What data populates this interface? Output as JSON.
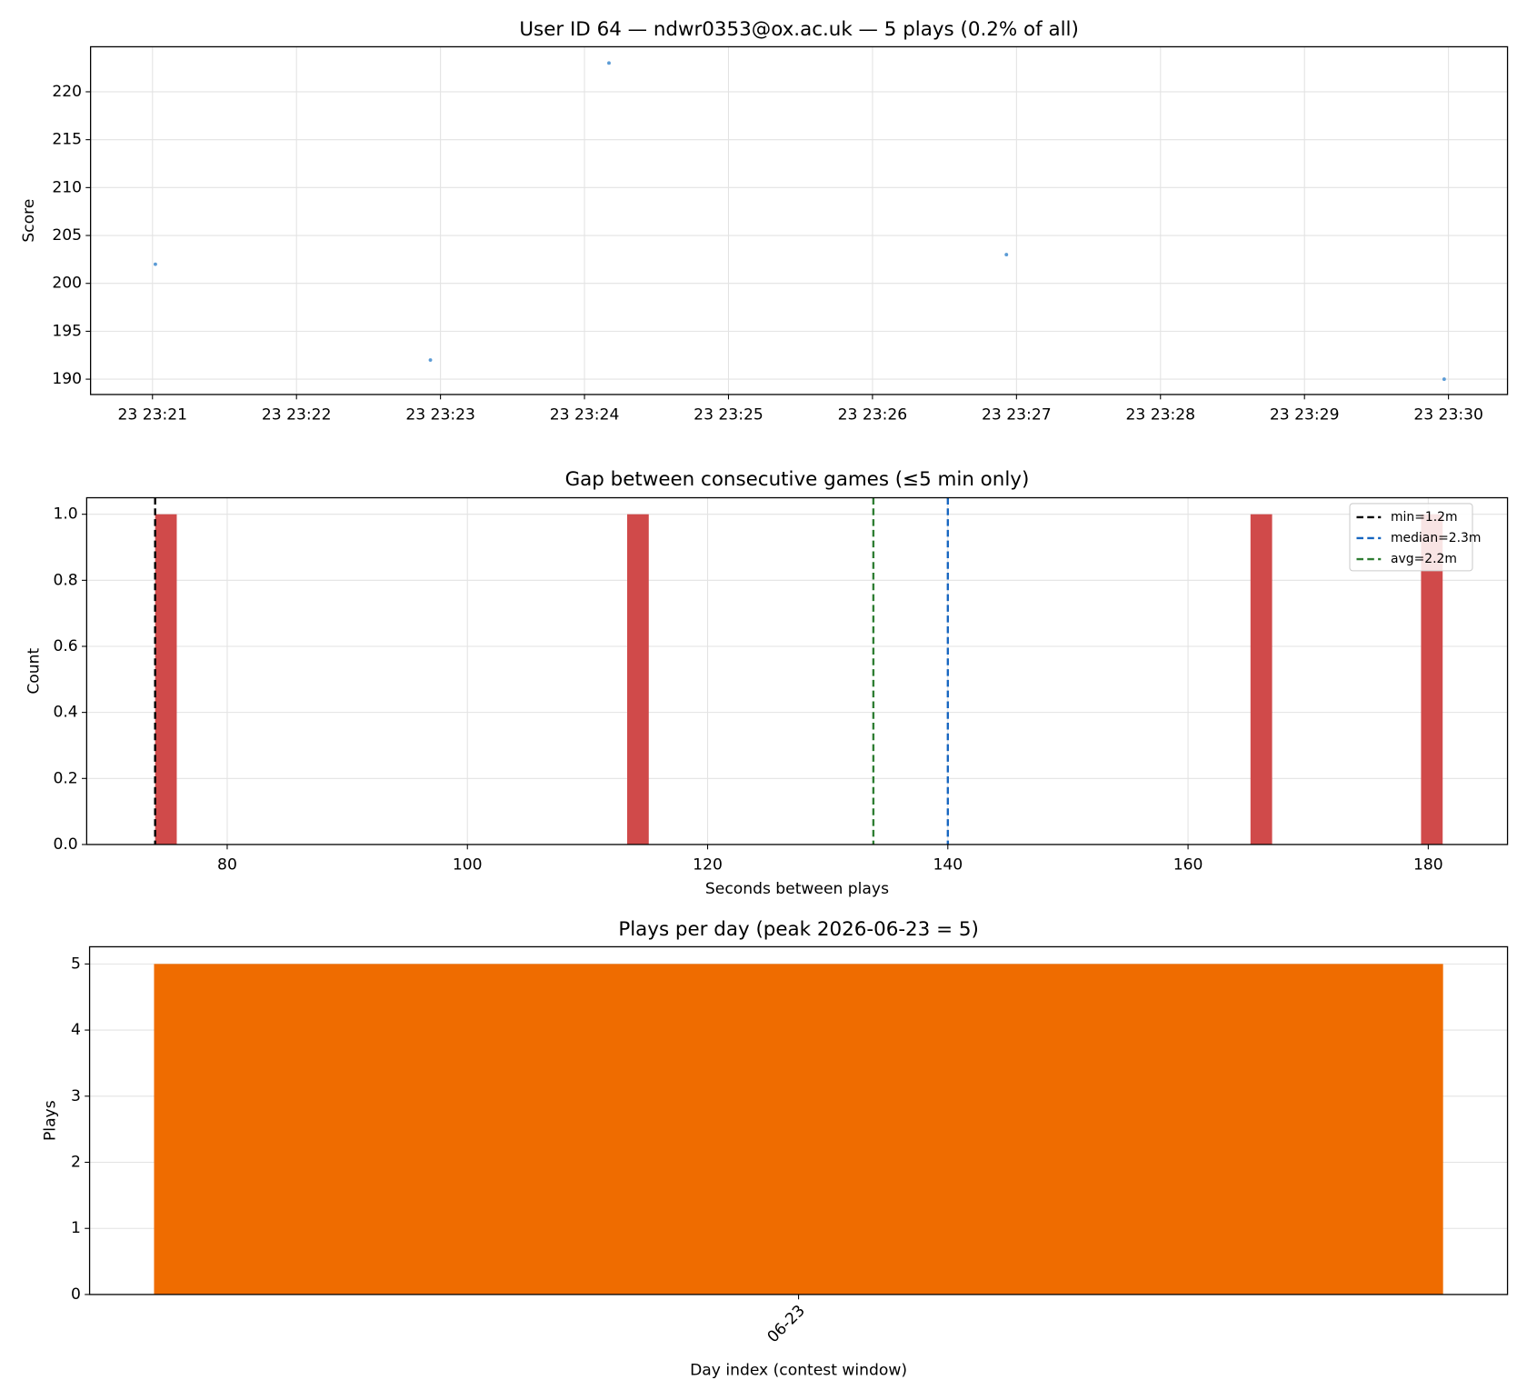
{
  "chart_data": [
    {
      "type": "scatter",
      "title": "User ID 64 — ndwr0353@ox.ac.uk — 5 plays (0.2% of all)",
      "ylabel": "Score",
      "x": [
        1401.02,
        1402.93,
        1404.17,
        1406.93,
        1409.97
      ],
      "values": [
        202,
        192,
        223,
        203,
        190
      ],
      "color": "#5b9bd5",
      "xlim": [
        1400.57,
        1410.41
      ],
      "xticks": [
        {
          "value": 1401,
          "label": "23 23:21"
        },
        {
          "value": 1402,
          "label": "23 23:22"
        },
        {
          "value": 1403,
          "label": "23 23:23"
        },
        {
          "value": 1404,
          "label": "23 23:24"
        },
        {
          "value": 1405,
          "label": "23 23:25"
        },
        {
          "value": 1406,
          "label": "23 23:26"
        },
        {
          "value": 1407,
          "label": "23 23:27"
        },
        {
          "value": 1408,
          "label": "23 23:28"
        },
        {
          "value": 1409,
          "label": "23 23:29"
        },
        {
          "value": 1410,
          "label": "23 23:30"
        }
      ],
      "ylim": [
        188.4,
        224.7
      ],
      "yticks": [
        190,
        195,
        200,
        205,
        210,
        215,
        220
      ],
      "grid": true
    },
    {
      "type": "histogram",
      "title": "Gap between consecutive games (≤5 min only)",
      "xlabel": "Seconds between plays",
      "ylabel": "Count",
      "bins": [
        74,
        75.8,
        113.3,
        115.1,
        165.2,
        167,
        179.4,
        181.2
      ],
      "values": [
        1,
        0,
        1,
        0,
        1,
        0,
        1
      ],
      "color": "#d04a4a",
      "vlines": [
        {
          "name": "min=1.2m",
          "value": 74,
          "color": "#000000"
        },
        {
          "name": "median=2.3m",
          "value": 140,
          "color": "#1565c0"
        },
        {
          "name": "avg=2.2m",
          "value": 133.8,
          "color": "#2e7d32"
        }
      ],
      "legend": "upper right",
      "xlim": [
        68.3,
        186.6
      ],
      "xticks": [
        80,
        100,
        120,
        140,
        160,
        180
      ],
      "ylim": [
        0,
        1.05
      ],
      "yticks": [
        {
          "value": 0,
          "label": "0.0"
        },
        0.2,
        0.4,
        0.6,
        0.8,
        {
          "value": 1,
          "label": "1.0"
        }
      ],
      "grid": true
    },
    {
      "type": "bar",
      "title": "Plays per day (peak 2026-06-23 = 5)",
      "xlabel": "Day index (contest window)",
      "ylabel": "Plays",
      "categories": [
        "06-23"
      ],
      "values": [
        5
      ],
      "color": "#ef6c00",
      "ylim": [
        0,
        5.26
      ],
      "yticks": [
        0,
        1,
        2,
        3,
        4,
        5
      ],
      "grid": true
    }
  ]
}
